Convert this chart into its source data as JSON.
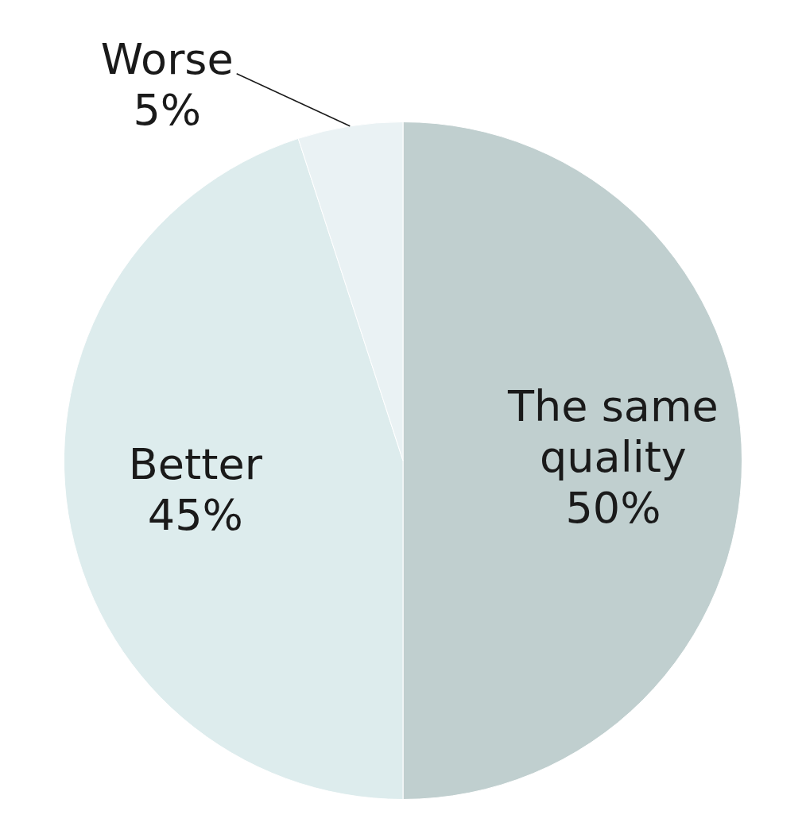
{
  "chart_data": {
    "type": "pie",
    "categories": [
      "The same quality",
      "Better",
      "Worse"
    ],
    "values": [
      50,
      45,
      5
    ],
    "colors": [
      "#c0cfcf",
      "#ddeced",
      "#eaf2f4"
    ],
    "value_labels": [
      "50%",
      "45%",
      "5%"
    ],
    "legend": false
  }
}
